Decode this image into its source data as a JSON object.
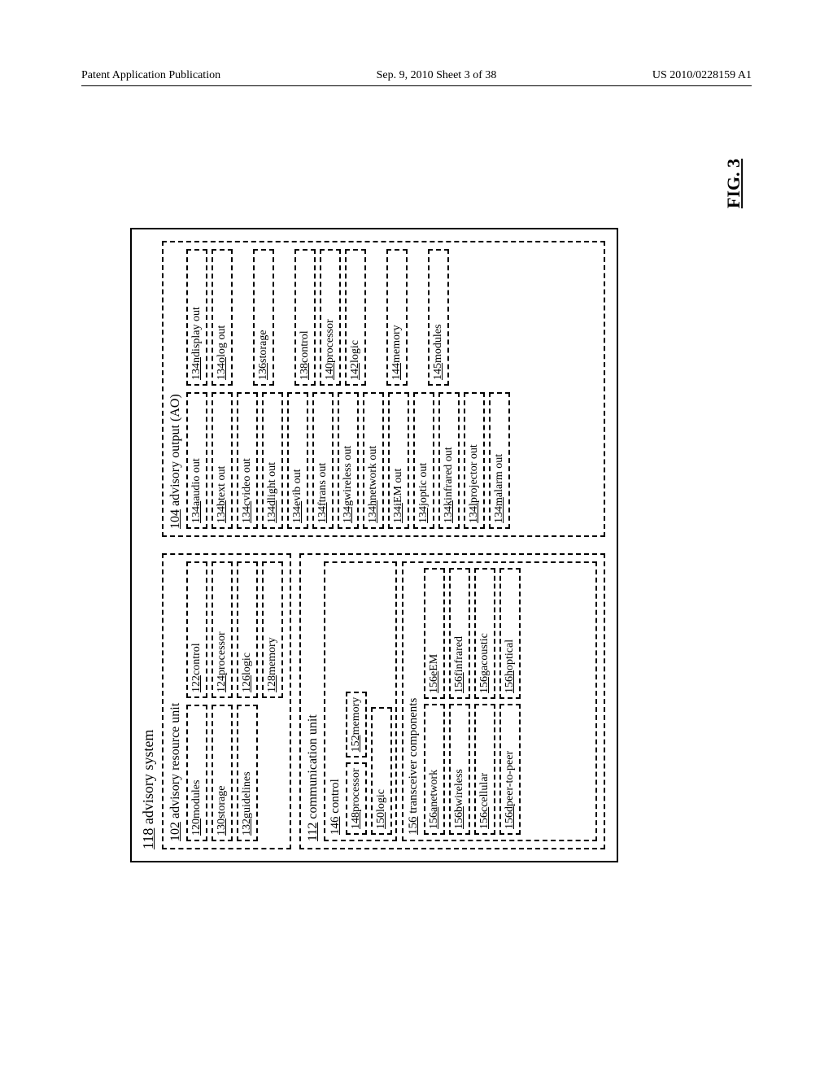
{
  "header": {
    "left": "Patent Application Publication",
    "center": "Sep. 9, 2010  Sheet 3 of 38",
    "right": "US 2010/0228159 A1"
  },
  "figLabel": "FIG. 3",
  "outerTitleRef": "118",
  "outerTitleText": " advisory system",
  "resource": {
    "ref": "102",
    "title": "  advisory resource unit",
    "left": [
      {
        "ref": "120",
        "t": " modules"
      },
      {
        "ref": "130",
        "t": " storage"
      },
      {
        "ref": "132",
        "t": " guidelines"
      }
    ],
    "right": [
      {
        "ref": "122",
        "t": " control"
      },
      {
        "ref": "124",
        "t": " processor"
      },
      {
        "ref": "126",
        "t": " logic"
      },
      {
        "ref": "128",
        "t": " memory"
      }
    ]
  },
  "comm": {
    "ref": "112",
    "title": "  communication unit",
    "ctrlRef": "146",
    "ctrlTitle": " control",
    "ctrlRow": [
      {
        "ref": "148",
        "t": " processor"
      },
      {
        "ref": "152",
        "t": " memory"
      }
    ],
    "ctrlBottom": {
      "ref": "150",
      "t": " logic"
    },
    "transRef": "156",
    "transTitle": " transceiver components",
    "transLeft": [
      {
        "ref": "156a",
        "t": " network"
      },
      {
        "ref": "156b",
        "t": " wireless"
      },
      {
        "ref": "156c",
        "t": " cellular"
      },
      {
        "ref": "156d",
        "t": " peer-to-peer"
      }
    ],
    "transRight": [
      {
        "ref": "156e",
        "t": " EM"
      },
      {
        "ref": "156f",
        "t": " infrared"
      },
      {
        "ref": "156g",
        "t": " acoustic"
      },
      {
        "ref": "156h",
        "t": " optical"
      }
    ]
  },
  "ao": {
    "ref": "104",
    "title": "  advisory output (AO)",
    "left": [
      {
        "ref": "134a",
        "t": " audio out"
      },
      {
        "ref": "134b",
        "t": " text out"
      },
      {
        "ref": "134c",
        "t": " video out"
      },
      {
        "ref": "134d",
        "t": " light out"
      },
      {
        "ref": "134e",
        "t": " vib out"
      },
      {
        "ref": "134f",
        "t": " trans out"
      },
      {
        "ref": "134g",
        "t": " wireless out"
      },
      {
        "ref": "134h",
        "t": " network out"
      },
      {
        "ref": "134i",
        "t": " EM out"
      },
      {
        "ref": "134j",
        "t": " optic out"
      },
      {
        "ref": "134k",
        "t": " infrared out"
      },
      {
        "ref": "134l",
        "t": " projector out"
      },
      {
        "ref": "134m",
        "t": " alarm out"
      }
    ],
    "right": [
      {
        "ref": "134n",
        "t": " display out"
      },
      {
        "ref": "134o",
        "t": " log out"
      },
      {
        "ref": "136",
        "t": " storage"
      },
      {
        "ref": "138",
        "t": " control"
      },
      {
        "ref": "140",
        "t": " processor"
      },
      {
        "ref": "142",
        "t": " logic"
      },
      {
        "ref": "144",
        "t": " memory"
      },
      {
        "ref": "145",
        "t": " modules"
      }
    ]
  }
}
